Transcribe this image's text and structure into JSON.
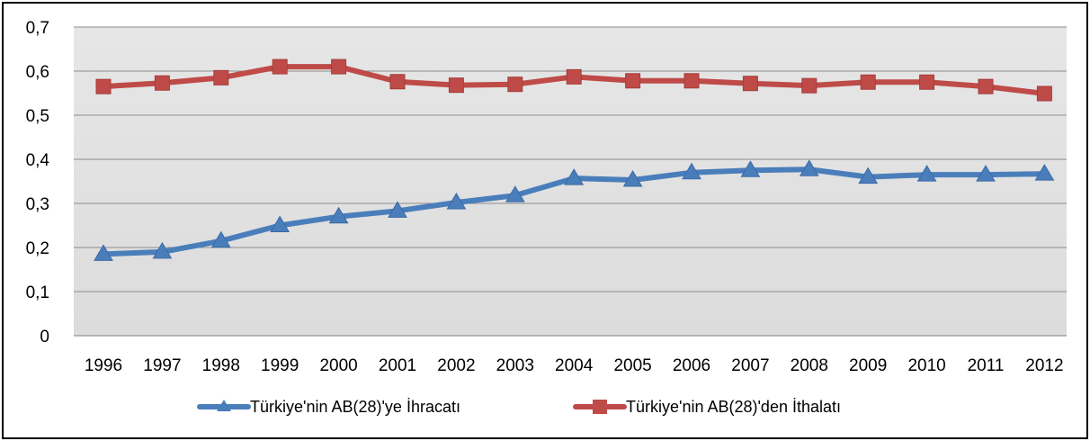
{
  "chart_data": {
    "type": "line",
    "categories": [
      "1996",
      "1997",
      "1998",
      "1999",
      "2000",
      "2001",
      "2002",
      "2003",
      "2004",
      "2005",
      "2006",
      "2007",
      "2008",
      "2009",
      "2010",
      "2011",
      "2012"
    ],
    "series": [
      {
        "name": "Türkiye'nin AB(28)'ye İhracatı",
        "color": "#4a7ebb",
        "marker": "triangle",
        "values": [
          0.185,
          0.19,
          0.215,
          0.25,
          0.27,
          0.283,
          0.302,
          0.318,
          0.357,
          0.353,
          0.37,
          0.375,
          0.377,
          0.36,
          0.365,
          0.365,
          0.367
        ]
      },
      {
        "name": "Türkiye'nin AB(28)'den İthalatı",
        "color": "#be4b48",
        "marker": "square",
        "values": [
          0.565,
          0.573,
          0.585,
          0.61,
          0.61,
          0.576,
          0.568,
          0.57,
          0.587,
          0.578,
          0.578,
          0.572,
          0.567,
          0.575,
          0.575,
          0.565,
          0.549
        ]
      }
    ],
    "y_ticks": [
      "0",
      "0,1",
      "0,2",
      "0,3",
      "0,4",
      "0,5",
      "0,6",
      "0,7"
    ],
    "ylim": [
      0,
      0.7
    ],
    "grid": true,
    "legend_position": "bottom",
    "plot_background": "#dcdcdc"
  }
}
